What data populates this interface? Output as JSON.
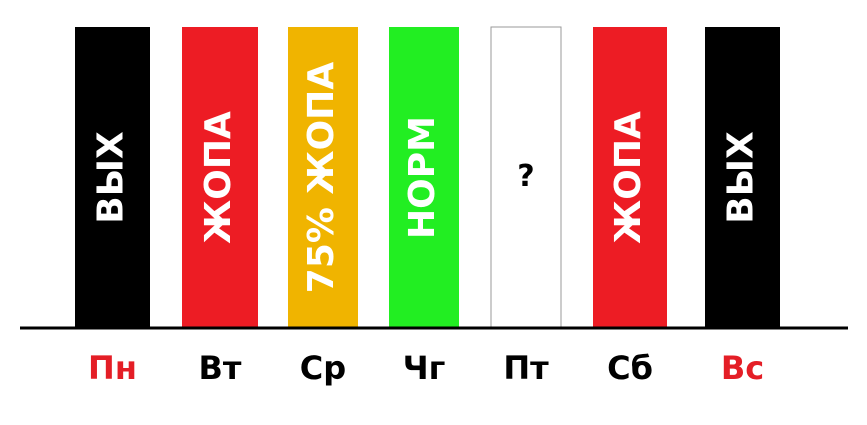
{
  "days": [
    {
      "label": "Пн",
      "label_color": "#e41e26",
      "bar_color": "#000000",
      "text": "ВЫХ",
      "text_color": "#ffffff"
    },
    {
      "label": "Вт",
      "label_color": "#000000",
      "bar_color": "#ed1c24",
      "text": "ЖОПА",
      "text_color": "#ffffff"
    },
    {
      "label": "Ср",
      "label_color": "#000000",
      "bar_color": "#f0b400",
      "text": "75% ЖОПА",
      "text_color": "#ffffff"
    },
    {
      "label": "Чг",
      "label_color": "#000000",
      "bar_color": "#22ee22",
      "text": "НОРМ",
      "text_color": "#ffffff"
    },
    {
      "label": "Пт",
      "label_color": "#000000",
      "bar_color": "#ffffff",
      "text": "?",
      "text_color": "#000000"
    },
    {
      "label": "Сб",
      "label_color": "#000000",
      "bar_color": "#ed1c24",
      "text": "ЖОПА",
      "text_color": "#ffffff"
    },
    {
      "label": "Вс",
      "label_color": "#e41e26",
      "bar_color": "#000000",
      "text": "ВЫХ",
      "text_color": "#ffffff"
    }
  ]
}
